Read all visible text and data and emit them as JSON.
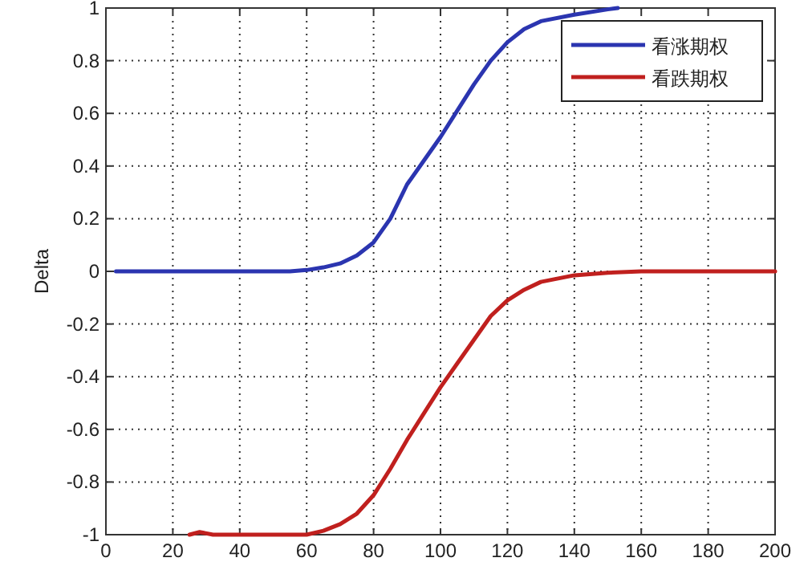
{
  "chart_data": {
    "type": "line",
    "ylabel": "Delta",
    "series": [
      {
        "name": "看涨期权",
        "color": "#2b35b0",
        "x": [
          3,
          55,
          60,
          65,
          70,
          75,
          80,
          85,
          90,
          95,
          100,
          105,
          110,
          115,
          120,
          125,
          130,
          140,
          150,
          153
        ],
        "values": [
          0,
          0,
          0.005,
          0.015,
          0.03,
          0.06,
          0.11,
          0.2,
          0.33,
          0.42,
          0.51,
          0.61,
          0.71,
          0.8,
          0.87,
          0.92,
          0.95,
          0.975,
          0.995,
          1
        ]
      },
      {
        "name": "看跌期权",
        "color": "#c0201e",
        "x": [
          25,
          28,
          32,
          60,
          65,
          70,
          75,
          80,
          85,
          90,
          95,
          100,
          105,
          110,
          115,
          120,
          125,
          130,
          140,
          150,
          160,
          200
        ],
        "values": [
          -1,
          -0.99,
          -1,
          -1,
          -0.985,
          -0.96,
          -0.92,
          -0.85,
          -0.75,
          -0.64,
          -0.54,
          -0.44,
          -0.35,
          -0.26,
          -0.17,
          -0.11,
          -0.07,
          -0.04,
          -0.015,
          -0.005,
          0,
          0
        ]
      }
    ],
    "xlim": [
      0,
      200
    ],
    "xticks": [
      0,
      20,
      40,
      60,
      80,
      100,
      120,
      140,
      160,
      180,
      200
    ],
    "ylim": [
      -1,
      1
    ],
    "yticks": [
      -1,
      -0.8,
      -0.6,
      -0.4,
      -0.2,
      0,
      0.2,
      0.4,
      0.6,
      0.8,
      1
    ],
    "grid": true,
    "legend": "top right",
    "marker": "none",
    "line_style": "solid"
  }
}
